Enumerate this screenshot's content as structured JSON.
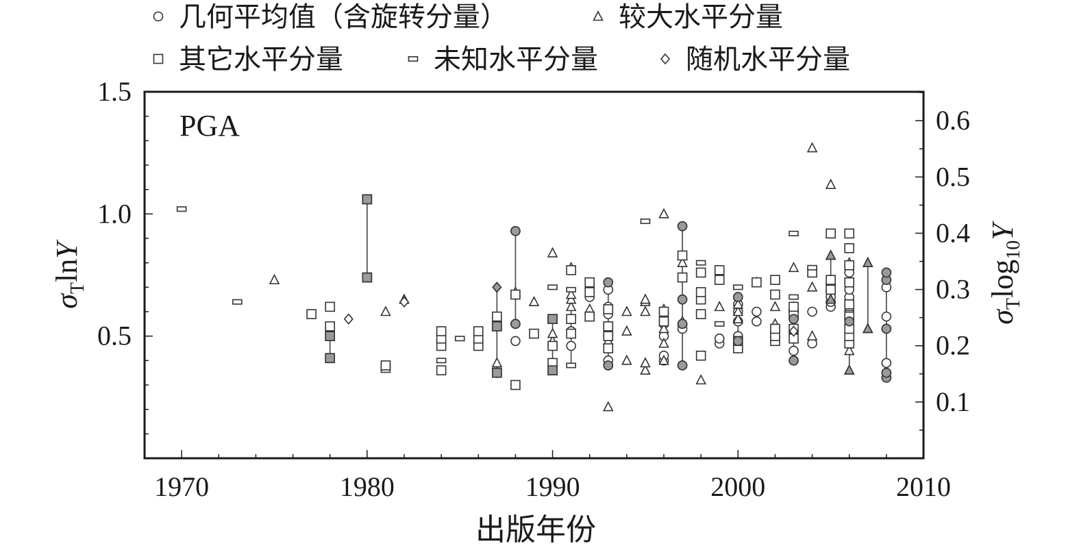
{
  "chart_data": {
    "type": "scatter",
    "annotation": "PGA",
    "xlabel": "出版年份",
    "ylabel_left": "σTlnY",
    "ylabel_right": "σTlog10Y",
    "xlim": [
      1968,
      2010
    ],
    "ylim": [
      0.0,
      1.5
    ],
    "ylim_right": [
      0.0,
      0.6514
    ],
    "x_ticks": [
      "1970",
      "1980",
      "1990",
      "2000",
      "2010"
    ],
    "y_ticks_left": [
      "0.5",
      "1.0",
      "1.5"
    ],
    "y_ticks_right": [
      "0.1",
      "0.2",
      "0.3",
      "0.4",
      "0.5",
      "0.6"
    ],
    "grid": false,
    "legend_position": "top",
    "legend": [
      {
        "label": "几何平均值（含旋转分量）",
        "marker": "circle"
      },
      {
        "label": "较大水平分量",
        "marker": "triangle"
      },
      {
        "label": "其它水平分量",
        "marker": "square"
      },
      {
        "label": "未知水平分量",
        "marker": "flat-rect"
      },
      {
        "label": "随机水平分量",
        "marker": "diamond"
      }
    ],
    "series": [
      {
        "name": "几何平均值（含旋转分量）",
        "marker": "circle",
        "points": [
          [
            1988,
            0.48
          ],
          [
            1988,
            0.55
          ],
          [
            1988,
            0.93
          ],
          [
            1991,
            0.46
          ],
          [
            1991,
            0.52
          ],
          [
            1992,
            0.66
          ],
          [
            1992,
            0.69
          ],
          [
            1993,
            0.38
          ],
          [
            1993,
            0.4
          ],
          [
            1993,
            0.46
          ],
          [
            1993,
            0.5
          ],
          [
            1993,
            0.59
          ],
          [
            1993,
            0.62
          ],
          [
            1993,
            0.69
          ],
          [
            1993,
            0.72
          ],
          [
            1996,
            0.4
          ],
          [
            1996,
            0.42
          ],
          [
            1996,
            0.5
          ],
          [
            1996,
            0.55
          ],
          [
            1997,
            0.38
          ],
          [
            1997,
            0.53
          ],
          [
            1997,
            0.55
          ],
          [
            1997,
            0.65
          ],
          [
            1997,
            0.95
          ],
          [
            1999,
            0.47
          ],
          [
            1999,
            0.49
          ],
          [
            2000,
            0.45
          ],
          [
            2000,
            0.48
          ],
          [
            2000,
            0.5
          ],
          [
            2000,
            0.56
          ],
          [
            2000,
            0.6
          ],
          [
            2000,
            0.63
          ],
          [
            2000,
            0.66
          ],
          [
            2001,
            0.56
          ],
          [
            2001,
            0.6
          ],
          [
            2003,
            0.4
          ],
          [
            2003,
            0.44
          ],
          [
            2003,
            0.52
          ],
          [
            2003,
            0.57
          ],
          [
            2003,
            0.6
          ],
          [
            2003,
            0.61
          ],
          [
            2004,
            0.47
          ],
          [
            2004,
            0.6
          ],
          [
            2005,
            0.62
          ],
          [
            2005,
            0.64
          ],
          [
            2005,
            0.66
          ],
          [
            2006,
            0.52
          ],
          [
            2006,
            0.56
          ],
          [
            2006,
            0.6
          ],
          [
            2006,
            0.63
          ],
          [
            2006,
            0.66
          ],
          [
            2006,
            0.69
          ],
          [
            2006,
            0.72
          ],
          [
            2006,
            0.76
          ],
          [
            2008,
            0.33
          ],
          [
            2008,
            0.35
          ],
          [
            2008,
            0.39
          ],
          [
            2008,
            0.53
          ],
          [
            2008,
            0.58
          ],
          [
            2008,
            0.7
          ],
          [
            2008,
            0.73
          ],
          [
            2008,
            0.76
          ]
        ]
      },
      {
        "name": "较大水平分量",
        "marker": "triangle",
        "points": [
          [
            1975,
            0.73
          ],
          [
            1981,
            0.6
          ],
          [
            1982,
            0.65
          ],
          [
            1987,
            0.39
          ],
          [
            1988,
            0.68
          ],
          [
            1989,
            0.64
          ],
          [
            1990,
            0.48
          ],
          [
            1990,
            0.51
          ],
          [
            1990,
            0.84
          ],
          [
            1991,
            0.62
          ],
          [
            1991,
            0.65
          ],
          [
            1991,
            0.67
          ],
          [
            1991,
            0.78
          ],
          [
            1992,
            0.61
          ],
          [
            1992,
            0.58
          ],
          [
            1993,
            0.21
          ],
          [
            1993,
            0.52
          ],
          [
            1993,
            0.48
          ],
          [
            1994,
            0.4
          ],
          [
            1994,
            0.52
          ],
          [
            1994,
            0.6
          ],
          [
            1995,
            0.36
          ],
          [
            1995,
            0.39
          ],
          [
            1995,
            0.6
          ],
          [
            1995,
            0.64
          ],
          [
            1995,
            0.65
          ],
          [
            1996,
            0.4
          ],
          [
            1996,
            0.47
          ],
          [
            1996,
            0.53
          ],
          [
            1996,
            0.56
          ],
          [
            1996,
            0.58
          ],
          [
            1996,
            0.61
          ],
          [
            1996,
            1.0
          ],
          [
            1997,
            0.56
          ],
          [
            1997,
            0.8
          ],
          [
            1997,
            0.83
          ],
          [
            1998,
            0.32
          ],
          [
            1999,
            0.62
          ],
          [
            2000,
            0.57
          ],
          [
            2000,
            0.6
          ],
          [
            2000,
            0.63
          ],
          [
            2001,
            0.72
          ],
          [
            2002,
            0.55
          ],
          [
            2002,
            0.62
          ],
          [
            2003,
            0.62
          ],
          [
            2003,
            0.78
          ],
          [
            2004,
            0.5
          ],
          [
            2004,
            0.7
          ],
          [
            2004,
            1.27
          ],
          [
            2005,
            0.65
          ],
          [
            2005,
            0.7
          ],
          [
            2005,
            0.73
          ],
          [
            2005,
            0.83
          ],
          [
            2005,
            1.12
          ],
          [
            2006,
            0.36
          ],
          [
            2006,
            0.44
          ],
          [
            2006,
            0.56
          ],
          [
            2006,
            0.62
          ],
          [
            2006,
            0.8
          ],
          [
            2007,
            0.53
          ],
          [
            2007,
            0.8
          ]
        ]
      },
      {
        "name": "其它水平分量",
        "marker": "square",
        "points": [
          [
            1977,
            0.59
          ],
          [
            1978,
            0.41
          ],
          [
            1978,
            0.5
          ],
          [
            1978,
            0.54
          ],
          [
            1978,
            0.62
          ],
          [
            1980,
            0.74
          ],
          [
            1980,
            1.06
          ],
          [
            1981,
            0.37
          ],
          [
            1981,
            0.38
          ],
          [
            1984,
            0.36
          ],
          [
            1984,
            0.46
          ],
          [
            1984,
            0.49
          ],
          [
            1984,
            0.52
          ],
          [
            1986,
            0.46
          ],
          [
            1986,
            0.49
          ],
          [
            1986,
            0.52
          ],
          [
            1987,
            0.35
          ],
          [
            1987,
            0.54
          ],
          [
            1987,
            0.58
          ],
          [
            1988,
            0.3
          ],
          [
            1988,
            0.67
          ],
          [
            1989,
            0.51
          ],
          [
            1990,
            0.36
          ],
          [
            1990,
            0.39
          ],
          [
            1990,
            0.46
          ],
          [
            1990,
            0.57
          ],
          [
            1991,
            0.51
          ],
          [
            1991,
            0.57
          ],
          [
            1991,
            0.77
          ],
          [
            1992,
            0.58
          ],
          [
            1992,
            0.68
          ],
          [
            1992,
            0.72
          ],
          [
            1993,
            0.45
          ],
          [
            1993,
            0.5
          ],
          [
            1993,
            0.54
          ],
          [
            1993,
            0.61
          ],
          [
            1996,
            0.56
          ],
          [
            1996,
            0.6
          ],
          [
            1997,
            0.74
          ],
          [
            1997,
            0.83
          ],
          [
            1998,
            0.42
          ],
          [
            1998,
            0.59
          ],
          [
            1998,
            0.65
          ],
          [
            1998,
            0.68
          ],
          [
            1998,
            0.76
          ],
          [
            1999,
            0.73
          ],
          [
            1999,
            0.77
          ],
          [
            2000,
            0.45
          ],
          [
            2000,
            0.48
          ],
          [
            2001,
            0.72
          ],
          [
            2002,
            0.48
          ],
          [
            2002,
            0.5
          ],
          [
            2002,
            0.53
          ],
          [
            2002,
            0.67
          ],
          [
            2002,
            0.73
          ],
          [
            2003,
            0.49
          ],
          [
            2003,
            0.53
          ],
          [
            2003,
            0.59
          ],
          [
            2003,
            0.62
          ],
          [
            2004,
            0.76
          ],
          [
            2005,
            0.69
          ],
          [
            2005,
            0.73
          ],
          [
            2005,
            0.92
          ],
          [
            2006,
            0.47
          ],
          [
            2006,
            0.5
          ],
          [
            2006,
            0.53
          ],
          [
            2006,
            0.58
          ],
          [
            2006,
            0.63
          ],
          [
            2006,
            0.72
          ],
          [
            2006,
            0.79
          ],
          [
            2006,
            0.86
          ],
          [
            2006,
            0.92
          ]
        ]
      },
      {
        "name": "未知水平分量",
        "marker": "flat-rect",
        "points": [
          [
            1970,
            1.02
          ],
          [
            1973,
            0.64
          ],
          [
            1984,
            0.4
          ],
          [
            1985,
            0.49
          ],
          [
            1990,
            0.7
          ],
          [
            1991,
            0.38
          ],
          [
            1991,
            0.69
          ],
          [
            1995,
            0.97
          ],
          [
            1998,
            0.8
          ],
          [
            1999,
            0.55
          ],
          [
            2000,
            0.7
          ],
          [
            2003,
            0.66
          ],
          [
            2003,
            0.92
          ],
          [
            2004,
            0.78
          ]
        ]
      },
      {
        "name": "随机水平分量",
        "marker": "diamond",
        "points": [
          [
            1979,
            0.57
          ],
          [
            1982,
            0.64
          ],
          [
            1987,
            0.7
          ],
          [
            1987,
            0.35
          ],
          [
            2003,
            0.52
          ]
        ]
      }
    ],
    "linked_groups": [
      {
        "x": 1978,
        "values": [
          0.41,
          0.5
        ]
      },
      {
        "x": 1980,
        "values": [
          0.74,
          1.06
        ]
      },
      {
        "x": 1987,
        "values": [
          0.35,
          0.54,
          0.58,
          0.7
        ]
      },
      {
        "x": 1988,
        "values": [
          0.55,
          0.93
        ]
      },
      {
        "x": 1990,
        "values": [
          0.36,
          0.57
        ]
      },
      {
        "x": 1991,
        "values": [
          0.38,
          0.69
        ]
      },
      {
        "x": 1993,
        "values": [
          0.38,
          0.72
        ]
      },
      {
        "x": 1997,
        "values": [
          0.38,
          0.95
        ]
      },
      {
        "x": 2000,
        "values": [
          0.48,
          0.66
        ]
      },
      {
        "x": 2003,
        "values": [
          0.4,
          0.61
        ]
      },
      {
        "x": 2005,
        "values": [
          0.65,
          0.83
        ]
      },
      {
        "x": 2006,
        "values": [
          0.36,
          0.63
        ]
      },
      {
        "x": 2007,
        "values": [
          0.53,
          0.8
        ]
      },
      {
        "x": 2008,
        "values": [
          0.33,
          0.76
        ]
      }
    ],
    "filled_points": [
      [
        "square",
        1978,
        0.41
      ],
      [
        "square",
        1978,
        0.5
      ],
      [
        "square",
        1980,
        0.74
      ],
      [
        "square",
        1980,
        1.06
      ],
      [
        "square",
        1987,
        0.35
      ],
      [
        "square",
        1987,
        0.54
      ],
      [
        "diamond",
        1987,
        0.7
      ],
      [
        "circle",
        1988,
        0.55
      ],
      [
        "circle",
        1988,
        0.93
      ],
      [
        "square",
        1990,
        0.36
      ],
      [
        "square",
        1990,
        0.57
      ],
      [
        "circle",
        1993,
        0.38
      ],
      [
        "circle",
        1993,
        0.72
      ],
      [
        "circle",
        1997,
        0.38
      ],
      [
        "circle",
        1997,
        0.55
      ],
      [
        "circle",
        1997,
        0.65
      ],
      [
        "circle",
        1997,
        0.95
      ],
      [
        "circle",
        2000,
        0.48
      ],
      [
        "circle",
        2000,
        0.66
      ],
      [
        "circle",
        2003,
        0.4
      ],
      [
        "circle",
        2003,
        0.57
      ],
      [
        "triangle",
        2005,
        0.65
      ],
      [
        "triangle",
        2005,
        0.83
      ],
      [
        "triangle",
        2006,
        0.36
      ],
      [
        "circle",
        2006,
        0.56
      ],
      [
        "triangle",
        2007,
        0.53
      ],
      [
        "triangle",
        2007,
        0.8
      ],
      [
        "circle",
        2008,
        0.33
      ],
      [
        "circle",
        2008,
        0.35
      ],
      [
        "circle",
        2008,
        0.53
      ],
      [
        "circle",
        2008,
        0.73
      ],
      [
        "circle",
        2008,
        0.76
      ]
    ],
    "colors": {
      "open_stroke": "#333333",
      "filled": "#9a9a9a",
      "link_line": "#444444",
      "axis": "#1a1a1a"
    }
  }
}
